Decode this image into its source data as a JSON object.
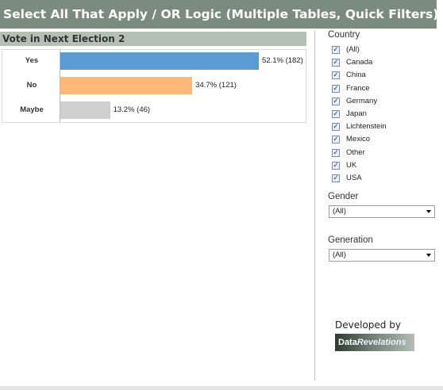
{
  "header": {
    "title": "Select All That Apply / OR Logic (Multiple Tables, Quick Filters)"
  },
  "chart_data": {
    "type": "bar",
    "orientation": "horizontal",
    "title": "Vote in Next Election 2",
    "categories": [
      "Yes",
      "No",
      "Maybe"
    ],
    "values": [
      52.1,
      34.7,
      13.2
    ],
    "value_labels": [
      "52.1% (182)",
      "34.7% (121)",
      "13.2% (46)"
    ],
    "colors": [
      "#5b9bd5",
      "#ffb877",
      "#cfcfcf"
    ]
  },
  "filters": {
    "country": {
      "label": "Country",
      "options": [
        "(All)",
        "Canada",
        "China",
        "France",
        "Germany",
        "Japan",
        "Lichtenstein",
        "Mexico",
        "Other",
        "UK",
        "USA"
      ]
    },
    "gender": {
      "label": "Gender",
      "selected": "(All)"
    },
    "generation": {
      "label": "Generation",
      "selected": "(All)"
    }
  },
  "credit": {
    "text": "Developed by",
    "logo_bold": "Data",
    "logo_italic": "Revelations"
  }
}
